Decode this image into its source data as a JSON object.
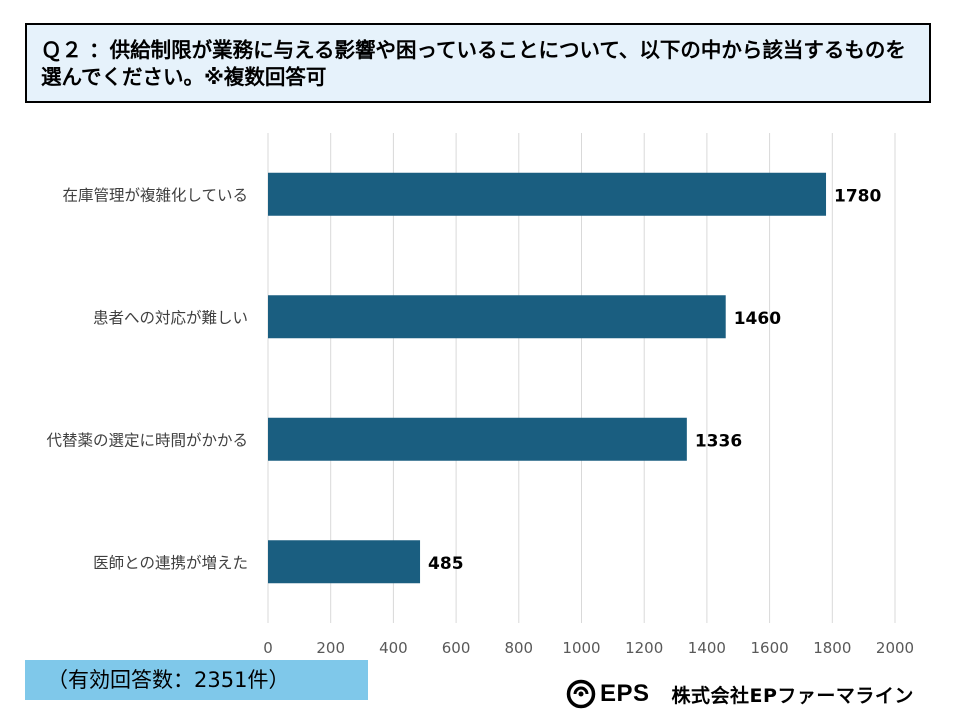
{
  "question": "Ｑ２ ：供給制限が業務に与える影響や困っていることについて、以下の中から該当するものを選んでください。※複数回答可",
  "respondents": "（有効回答数：2351件）",
  "footer": {
    "logo_text": "EPS",
    "company": "株式会社EPファーマライン"
  },
  "colors": {
    "bar": "#1a5e80",
    "grid": "#d9d9d9",
    "header_bg": "#e6f2fb",
    "count_bg": "#7fc8ea"
  },
  "chart_data": {
    "type": "bar",
    "orientation": "horizontal",
    "categories": [
      "在庫管理が複雑化している",
      "患者への対応が難しい",
      "代替薬の選定に時間がかかる",
      "医師との連携が増えた"
    ],
    "values": [
      1780,
      1460,
      1336,
      485
    ],
    "data_labels": [
      "1780",
      "1460",
      "1336",
      "485"
    ],
    "xlim": [
      0,
      2000
    ],
    "xticks": [
      0,
      200,
      400,
      600,
      800,
      1000,
      1200,
      1400,
      1600,
      1800,
      2000
    ],
    "grid": true,
    "title": "",
    "xlabel": "",
    "ylabel": ""
  }
}
